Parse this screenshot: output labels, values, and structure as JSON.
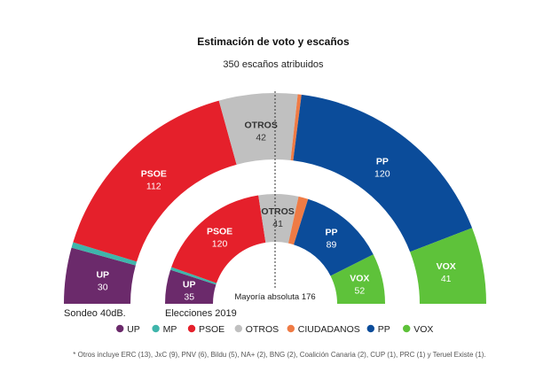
{
  "chart_data": {
    "type": "parliament-arc",
    "title": "Estimación de voto y escaños",
    "subtitle": "350 escaños atribuidos",
    "majority_label": "Mayoría absoluta 176",
    "majority_seats": 176,
    "total_seats": 350,
    "parties": [
      {
        "key": "UP",
        "name": "UP",
        "color": "#6b2a6b"
      },
      {
        "key": "MP",
        "name": "MP",
        "color": "#3fb5ab"
      },
      {
        "key": "PSOE",
        "name": "PSOE",
        "color": "#e5202b"
      },
      {
        "key": "OTROS",
        "name": "OTROS",
        "color": "#c0c0c0"
      },
      {
        "key": "CIUDADANOS",
        "name": "CIUDADANOS",
        "color": "#ef7b45"
      },
      {
        "key": "PP",
        "name": "PP",
        "color": "#0b4c9a"
      },
      {
        "key": "VOX",
        "name": "VOX",
        "color": "#5ec23a"
      }
    ],
    "series": [
      {
        "name": "Sondeo 40dB.",
        "seats": {
          "UP": 30,
          "MP": 3,
          "PSOE": 112,
          "OTROS": 42,
          "CIUDADANOS": 2,
          "PP": 120,
          "VOX": 41
        }
      },
      {
        "name": "Elecciones 2019",
        "seats": {
          "UP": 35,
          "MP": 3,
          "PSOE": 120,
          "OTROS": 41,
          "CIUDADANOS": 10,
          "PP": 89,
          "VOX": 52
        }
      }
    ],
    "shown_labels": {
      "outer": [
        "UP",
        "PSOE",
        "OTROS",
        "PP",
        "VOX"
      ],
      "inner": [
        "UP",
        "PSOE",
        "OTROS",
        "PP",
        "VOX"
      ]
    }
  },
  "legend": [
    "UP",
    "MP",
    "PSOE",
    "OTROS",
    "CIUDADANOS",
    "PP",
    "VOX"
  ],
  "footnote": "* Otros incluye ERC (13), JxC (9), PNV (6), Bildu (5), NA+ (2), BNG (2), Coalición Canaria (2), CUP (1), PRC (1) y Teruel Existe (1)."
}
